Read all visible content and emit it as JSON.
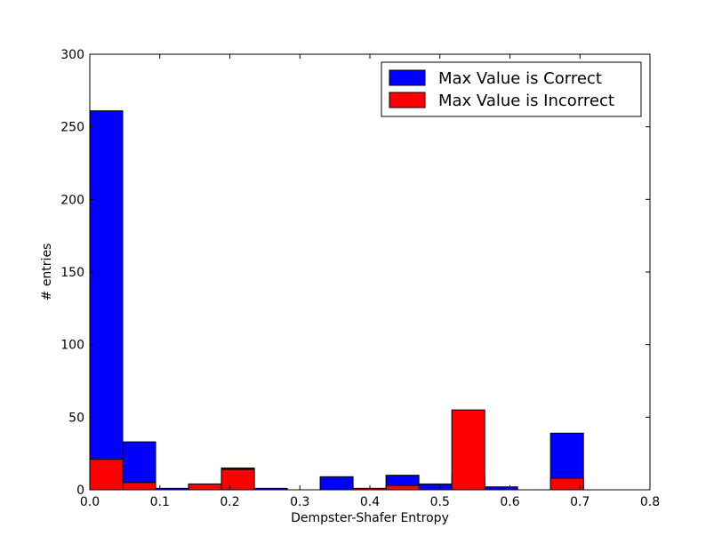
{
  "chart_data": {
    "type": "bar",
    "title": "",
    "xlabel": "Dempster-Shafer Entropy",
    "ylabel": "# entries",
    "xlim": [
      0.0,
      0.8
    ],
    "ylim": [
      0,
      300
    ],
    "xticks": [
      "0.0",
      "0.1",
      "0.2",
      "0.3",
      "0.4",
      "0.5",
      "0.6",
      "0.7",
      "0.8"
    ],
    "yticks": [
      "0",
      "50",
      "100",
      "150",
      "200",
      "250",
      "300"
    ],
    "grid": false,
    "legend_position": "top-right",
    "series": [
      {
        "name": "Max Value is Correct",
        "color": "#0000ff",
        "bins": [
          {
            "x0": 0.0,
            "x1": 0.047,
            "value": 261
          },
          {
            "x0": 0.047,
            "x1": 0.094,
            "value": 33
          },
          {
            "x0": 0.094,
            "x1": 0.141,
            "value": 1
          },
          {
            "x0": 0.141,
            "x1": 0.188,
            "value": 4
          },
          {
            "x0": 0.188,
            "x1": 0.235,
            "value": 15
          },
          {
            "x0": 0.235,
            "x1": 0.282,
            "value": 1
          },
          {
            "x0": 0.329,
            "x1": 0.376,
            "value": 9
          },
          {
            "x0": 0.423,
            "x1": 0.47,
            "value": 10
          },
          {
            "x0": 0.47,
            "x1": 0.517,
            "value": 4
          },
          {
            "x0": 0.517,
            "x1": 0.564,
            "value": 10
          },
          {
            "x0": 0.564,
            "x1": 0.611,
            "value": 2
          },
          {
            "x0": 0.658,
            "x1": 0.705,
            "value": 39
          }
        ]
      },
      {
        "name": "Max Value is Incorrect",
        "color": "#ff0000",
        "bins": [
          {
            "x0": 0.0,
            "x1": 0.047,
            "value": 21
          },
          {
            "x0": 0.047,
            "x1": 0.094,
            "value": 5
          },
          {
            "x0": 0.141,
            "x1": 0.188,
            "value": 4
          },
          {
            "x0": 0.188,
            "x1": 0.235,
            "value": 14
          },
          {
            "x0": 0.376,
            "x1": 0.423,
            "value": 1
          },
          {
            "x0": 0.423,
            "x1": 0.47,
            "value": 3
          },
          {
            "x0": 0.517,
            "x1": 0.564,
            "value": 55
          },
          {
            "x0": 0.658,
            "x1": 0.705,
            "value": 8
          }
        ]
      }
    ]
  }
}
